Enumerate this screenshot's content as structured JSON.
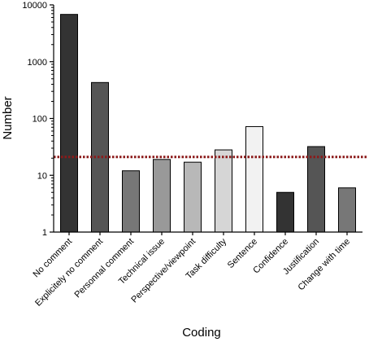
{
  "chart_data": {
    "type": "bar",
    "xlabel": "Coding",
    "ylabel": "Number",
    "yscale": "log",
    "ylim": [
      1,
      10000
    ],
    "yticks": [
      1,
      10,
      100,
      1000,
      10000
    ],
    "ytick_labels": [
      "1",
      "10",
      "100",
      "1000",
      "10000"
    ],
    "grid": false,
    "categories": [
      "No comment",
      "Explicitely no comment",
      "Personnal comment",
      "Technical issue",
      "Perspective/viewpoint",
      "Task difficulty",
      "Sentence",
      "Confidence",
      "Justification",
      "Change with time"
    ],
    "values": [
      6800,
      430,
      12,
      19,
      17,
      28,
      72,
      5,
      32,
      6
    ],
    "bar_colors": [
      "#333333",
      "#555555",
      "#777777",
      "#999999",
      "#b8b8b8",
      "#d6d6d6",
      "#f2f2f2",
      "#333333",
      "#555555",
      "#777777"
    ],
    "reference_line": {
      "value": 21,
      "style": "dotted",
      "color": "#8b1a1a"
    }
  }
}
